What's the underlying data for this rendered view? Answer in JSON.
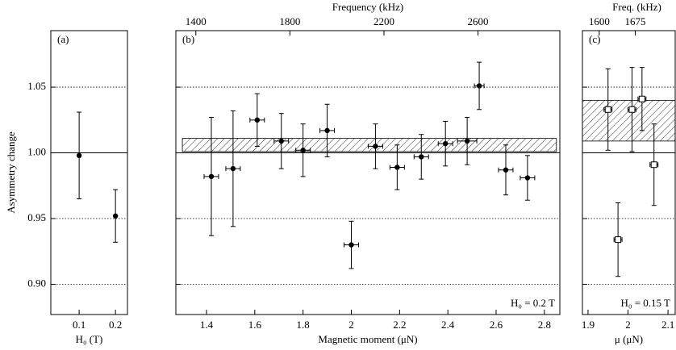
{
  "chart_data": [
    {
      "type": "scatter",
      "panel_label": "(a)",
      "ylabel": "Asymmetry change",
      "xlabel": "H₀ (T)",
      "xlim": [
        0.022,
        0.233
      ],
      "xticks": [
        0.1,
        0.2
      ],
      "ylim": [
        0.877,
        1.093
      ],
      "yticks": [
        {
          "value": 0.9,
          "label": "0.90"
        },
        {
          "value": 0.95,
          "label": "0.95"
        },
        {
          "value": 1,
          "label": "1.00"
        },
        {
          "value": 1.05,
          "label": "1.05"
        }
      ],
      "ytick_labels": true,
      "grid": true,
      "refline": 1,
      "series": [
        {
          "marker": "circle",
          "color": "#000000",
          "x": [
            0.1,
            0.2
          ],
          "values": [
            0.998,
            0.952
          ],
          "yerr": [
            0.033,
            0.02
          ]
        }
      ]
    },
    {
      "type": "scatter",
      "panel_label": "(b)",
      "xlabel": "Magnetic moment (μN)",
      "x2label": "Frequency (kHz)",
      "annotation": "H₀ = 0.2 T",
      "xlim": [
        1.273,
        2.864
      ],
      "xticks": [
        1.4,
        1.6,
        1.8,
        2,
        2.2,
        2.4,
        2.6,
        2.8
      ],
      "x2lim": [
        1315,
        2948
      ],
      "x2ticks": [
        1400,
        1800,
        2200,
        2600
      ],
      "ylim": [
        0.877,
        1.093
      ],
      "yticks": [
        0.9,
        0.95,
        1,
        1.05
      ],
      "ytick_labels": false,
      "grid": true,
      "refline": 1,
      "band": {
        "x": [
          1.3,
          2.85
        ],
        "y": [
          1.001,
          1.011
        ]
      },
      "series": [
        {
          "marker": "circle",
          "color": "#000000",
          "x": [
            1.42,
            1.51,
            1.61,
            1.71,
            1.8,
            1.9,
            2.0,
            2.1,
            2.19,
            2.29,
            2.39,
            2.48,
            2.53,
            2.64,
            2.73
          ],
          "values": [
            0.982,
            0.988,
            1.025,
            1.009,
            1.002,
            1.017,
            0.93,
            1.005,
            0.989,
            0.997,
            1.007,
            1.009,
            1.051,
            0.987,
            0.981
          ],
          "xerr": [
            0.03,
            0.03,
            0.03,
            0.03,
            0.03,
            0.03,
            0.03,
            0.03,
            0.03,
            0.03,
            0.03,
            0.04,
            0.02,
            0.03,
            0.03
          ],
          "yerr": [
            0.045,
            0.044,
            0.02,
            0.021,
            0.02,
            0.02,
            0.018,
            0.017,
            0.017,
            0.017,
            0.017,
            0.018,
            0.018,
            0.019,
            0.017
          ]
        }
      ]
    },
    {
      "type": "scatter",
      "panel_label": "(c)",
      "xlabel": "μ (μN)",
      "x2label": "Freq. (kHz)",
      "annotation": "H₀ = 0.15 T",
      "xlim": [
        1.886,
        2.118
      ],
      "xticks": [
        1.9,
        2,
        2.1
      ],
      "x2lim": [
        1565,
        1758
      ],
      "x2ticks": [
        1600,
        1675
      ],
      "ylim": [
        0.877,
        1.093
      ],
      "yticks": [
        0.9,
        0.95,
        1,
        1.05
      ],
      "ytick_labels": false,
      "grid": true,
      "refline": 1,
      "band": {
        "x": [
          1.886,
          2.118
        ],
        "y": [
          1.009,
          1.04
        ]
      },
      "series": [
        {
          "marker": "square",
          "color": "#000000",
          "x": [
            1.95,
            1.975,
            2.01,
            2.035,
            2.065
          ],
          "values": [
            1.033,
            0.934,
            1.033,
            1.041,
            0.991
          ],
          "xerr": [
            0.01,
            0.01,
            0.01,
            0.01,
            0.01
          ],
          "yerr": [
            0.031,
            0.028,
            0.032,
            0.024,
            0.031
          ]
        }
      ]
    }
  ]
}
